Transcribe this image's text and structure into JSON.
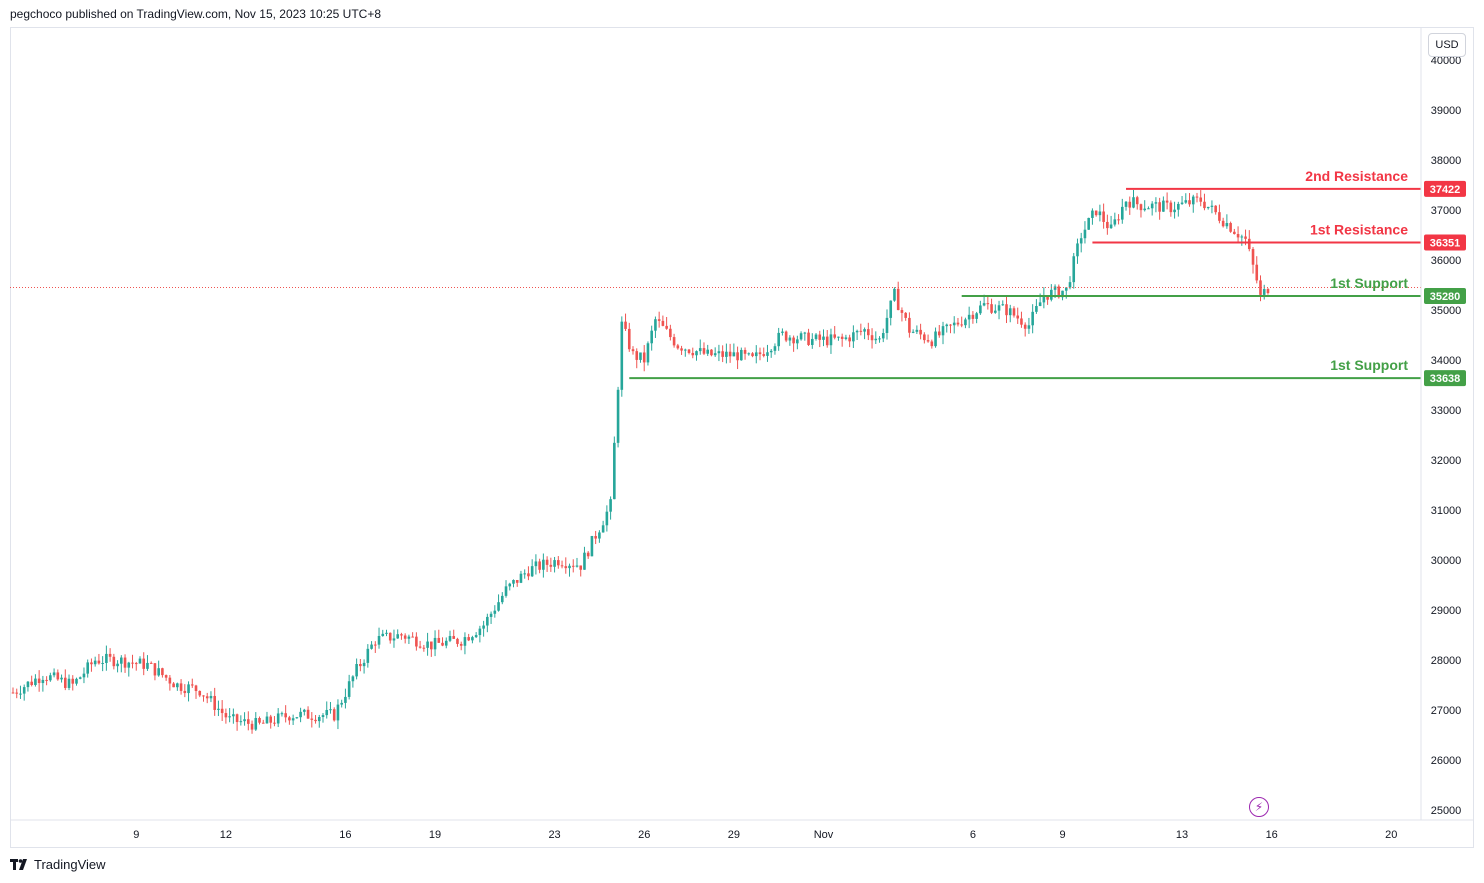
{
  "header": {
    "text": "pegchoco published on TradingView.com, Nov 15, 2023 10:25 UTC+8"
  },
  "currency_button": {
    "label": "USD"
  },
  "footer": {
    "brand": "TradingView"
  },
  "colors": {
    "up": "#26a69a",
    "down": "#ef5350",
    "resistance": "#f23645",
    "support": "#43a047"
  },
  "chart_data": {
    "type": "candlestick",
    "title": "",
    "ylim": [
      24900,
      40200
    ],
    "y_ticks": [
      25000,
      26000,
      27000,
      28000,
      29000,
      30000,
      31000,
      32000,
      33000,
      34000,
      35000,
      36000,
      37000,
      38000,
      39000,
      40000
    ],
    "x_ticks": [
      {
        "label": "9",
        "bar": 33
      },
      {
        "label": "12",
        "bar": 57
      },
      {
        "label": "16",
        "bar": 89
      },
      {
        "label": "19",
        "bar": 113
      },
      {
        "label": "23",
        "bar": 145
      },
      {
        "label": "26",
        "bar": 169
      },
      {
        "label": "29",
        "bar": 193
      },
      {
        "label": "Nov",
        "bar": 217
      },
      {
        "label": "6",
        "bar": 257
      },
      {
        "label": "9",
        "bar": 281
      },
      {
        "label": "13",
        "bar": 313
      },
      {
        "label": "16",
        "bar": 337
      },
      {
        "label": "20",
        "bar": 369
      }
    ],
    "total_bars": 380,
    "levels": [
      {
        "label": "2nd Resistance",
        "value": 37422,
        "value_label": "37422",
        "kind": "resistance",
        "from_bar": 298
      },
      {
        "label": "1st Resistance",
        "value": 36351,
        "value_label": "36351",
        "kind": "resistance",
        "from_bar": 289
      },
      {
        "label": "1st Support",
        "value": 35280,
        "value_label": "35280",
        "kind": "support",
        "from_bar": 254
      },
      {
        "label": "1st Support",
        "value": 33638,
        "value_label": "33638",
        "kind": "support",
        "from_bar": 165
      }
    ],
    "last_price": 35450,
    "anchors": [
      [
        0,
        27350
      ],
      [
        8,
        27700
      ],
      [
        16,
        27500
      ],
      [
        22,
        28000
      ],
      [
        28,
        28000
      ],
      [
        36,
        27900
      ],
      [
        44,
        27500
      ],
      [
        50,
        27400
      ],
      [
        58,
        26800
      ],
      [
        66,
        26700
      ],
      [
        74,
        26900
      ],
      [
        86,
        26900
      ],
      [
        92,
        27800
      ],
      [
        97,
        28400
      ],
      [
        104,
        28500
      ],
      [
        112,
        28300
      ],
      [
        120,
        28400
      ],
      [
        126,
        28700
      ],
      [
        132,
        29400
      ],
      [
        138,
        29800
      ],
      [
        146,
        30000
      ],
      [
        152,
        29900
      ],
      [
        156,
        30500
      ],
      [
        160,
        31100
      ],
      [
        162,
        33500
      ],
      [
        163,
        34700
      ],
      [
        166,
        34100
      ],
      [
        169,
        34000
      ],
      [
        172,
        34800
      ],
      [
        178,
        34300
      ],
      [
        186,
        34100
      ],
      [
        194,
        34100
      ],
      [
        198,
        34000
      ],
      [
        206,
        34500
      ],
      [
        214,
        34400
      ],
      [
        222,
        34400
      ],
      [
        228,
        34600
      ],
      [
        232,
        34400
      ],
      [
        236,
        35300
      ],
      [
        240,
        34600
      ],
      [
        246,
        34400
      ],
      [
        254,
        34800
      ],
      [
        260,
        35100
      ],
      [
        266,
        35000
      ],
      [
        272,
        34700
      ],
      [
        276,
        35300
      ],
      [
        282,
        35400
      ],
      [
        286,
        36500
      ],
      [
        290,
        37000
      ],
      [
        294,
        36600
      ],
      [
        298,
        37200
      ],
      [
        302,
        37100
      ],
      [
        310,
        37050
      ],
      [
        318,
        37200
      ],
      [
        324,
        36800
      ],
      [
        330,
        36400
      ],
      [
        333,
        35600
      ],
      [
        334,
        35250
      ],
      [
        336,
        35450
      ]
    ]
  }
}
